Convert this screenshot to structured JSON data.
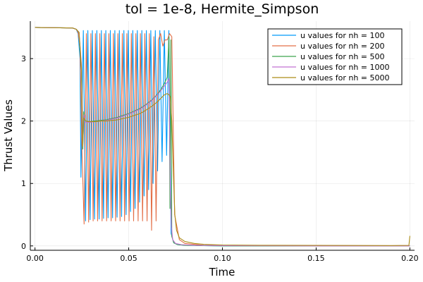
{
  "chart_data": {
    "type": "line",
    "title": "tol = 1e-8, Hermite_Simpson",
    "xlabel": "Time",
    "ylabel": "Thrust Values",
    "xlim": [
      -0.0025,
      0.2025
    ],
    "ylim": [
      -0.07,
      3.6
    ],
    "xticks": [
      0.0,
      0.05,
      0.1,
      0.15,
      0.2
    ],
    "xtick_labels": [
      "0.00",
      "0.05",
      "0.10",
      "0.15",
      "0.20"
    ],
    "yticks": [
      0,
      1,
      2,
      3
    ],
    "ytick_labels": [
      "0",
      "1",
      "2",
      "3"
    ],
    "grid": true,
    "legend_position": "top-right",
    "series": [
      {
        "name": "u values for nh = 100",
        "color": "#009AFA",
        "x": [
          0.0,
          0.02,
          0.022,
          0.023,
          0.024,
          0.0245,
          0.0258,
          0.027,
          0.0282,
          0.0294,
          0.0306,
          0.0318,
          0.033,
          0.0342,
          0.0354,
          0.0366,
          0.0378,
          0.039,
          0.0402,
          0.0414,
          0.0426,
          0.0438,
          0.045,
          0.0462,
          0.0474,
          0.0486,
          0.0498,
          0.051,
          0.0522,
          0.0534,
          0.0546,
          0.0558,
          0.057,
          0.0582,
          0.0594,
          0.0606,
          0.0618,
          0.063,
          0.0642,
          0.0654,
          0.0666,
          0.0678,
          0.069,
          0.0702,
          0.0714,
          0.0726,
          0.074,
          0.076,
          0.08,
          0.09,
          0.1,
          0.12,
          0.15,
          0.18,
          0.2
        ],
        "values": [
          3.5,
          3.49,
          3.47,
          3.4,
          3.0,
          1.1,
          3.45,
          0.4,
          3.45,
          0.42,
          3.45,
          0.43,
          3.45,
          0.43,
          3.45,
          0.44,
          3.45,
          0.45,
          3.45,
          0.45,
          3.45,
          0.46,
          3.45,
          0.47,
          3.45,
          0.5,
          3.45,
          0.55,
          3.45,
          0.6,
          3.45,
          0.7,
          3.45,
          0.8,
          3.45,
          0.9,
          3.45,
          1.0,
          3.45,
          1.2,
          3.45,
          1.35,
          3.45,
          1.45,
          3.45,
          0.2,
          0.05,
          0.02,
          0.01,
          0.005,
          0.0,
          0.0,
          0.0,
          0.0,
          0.0
        ]
      },
      {
        "name": "u values for nh = 200",
        "color": "#E36F47",
        "x": [
          0.0,
          0.02,
          0.022,
          0.023,
          0.024,
          0.025,
          0.0262,
          0.0274,
          0.0286,
          0.0298,
          0.031,
          0.0322,
          0.0334,
          0.0346,
          0.0358,
          0.037,
          0.0382,
          0.0394,
          0.0406,
          0.0418,
          0.043,
          0.0442,
          0.0454,
          0.0466,
          0.0478,
          0.049,
          0.0502,
          0.0514,
          0.0526,
          0.0538,
          0.055,
          0.0562,
          0.0574,
          0.0586,
          0.0598,
          0.061,
          0.0622,
          0.0634,
          0.0646,
          0.0658,
          0.067,
          0.0682,
          0.0694,
          0.0706,
          0.0718,
          0.073,
          0.0745,
          0.077,
          0.08,
          0.09,
          0.1,
          0.15,
          0.2
        ],
        "values": [
          3.5,
          3.49,
          3.47,
          3.42,
          3.2,
          1.6,
          0.35,
          3.4,
          0.38,
          3.4,
          0.4,
          3.4,
          0.4,
          3.4,
          0.4,
          3.4,
          0.4,
          3.4,
          0.4,
          3.4,
          0.4,
          3.4,
          0.4,
          3.4,
          0.4,
          3.4,
          0.4,
          3.4,
          0.4,
          3.4,
          0.4,
          3.4,
          0.4,
          3.4,
          0.4,
          3.4,
          0.25,
          3.35,
          0.4,
          3.3,
          3.4,
          3.2,
          3.3,
          3.3,
          3.4,
          3.35,
          0.5,
          0.1,
          0.04,
          0.01,
          0.005,
          0.0,
          0.0
        ]
      },
      {
        "name": "u values for nh = 500",
        "color": "#3EA44E",
        "x": [
          0.0,
          0.02,
          0.022,
          0.0235,
          0.0248,
          0.0255,
          0.026,
          0.027,
          0.029,
          0.032,
          0.035,
          0.038,
          0.041,
          0.044,
          0.047,
          0.05,
          0.053,
          0.056,
          0.059,
          0.062,
          0.065,
          0.067,
          0.069,
          0.0705,
          0.0715,
          0.072,
          0.0725,
          0.073,
          0.074,
          0.076,
          0.08,
          0.09,
          0.1,
          0.15,
          0.2
        ],
        "values": [
          3.5,
          3.49,
          3.47,
          3.42,
          2.8,
          1.55,
          2.15,
          2.0,
          1.99,
          2.0,
          2.01,
          2.02,
          2.04,
          2.06,
          2.09,
          2.12,
          2.16,
          2.2,
          2.26,
          2.33,
          2.42,
          2.5,
          2.6,
          2.7,
          3.35,
          0.6,
          3.3,
          0.15,
          0.05,
          0.02,
          0.01,
          0.005,
          0.0,
          0.0,
          0.0
        ]
      },
      {
        "name": "u values for nh = 1000",
        "color": "#C271D2",
        "x": [
          0.0,
          0.02,
          0.022,
          0.0235,
          0.0248,
          0.0256,
          0.0262,
          0.027,
          0.029,
          0.032,
          0.035,
          0.038,
          0.041,
          0.044,
          0.047,
          0.05,
          0.053,
          0.056,
          0.059,
          0.062,
          0.065,
          0.067,
          0.069,
          0.0705,
          0.0715,
          0.0722,
          0.0728,
          0.0735,
          0.075,
          0.078,
          0.085,
          0.1,
          0.15,
          0.2
        ],
        "values": [
          3.5,
          3.49,
          3.47,
          3.42,
          2.9,
          1.7,
          2.1,
          1.98,
          1.98,
          1.99,
          2.0,
          2.01,
          2.03,
          2.05,
          2.08,
          2.11,
          2.15,
          2.19,
          2.25,
          2.32,
          2.41,
          2.48,
          2.56,
          2.62,
          2.68,
          0.9,
          0.3,
          0.1,
          0.04,
          0.02,
          0.01,
          0.005,
          0.0,
          0.0
        ]
      },
      {
        "name": "u values for nh = 5000",
        "color": "#AC8D18",
        "x": [
          0.0,
          0.02,
          0.022,
          0.0235,
          0.0248,
          0.0255,
          0.026,
          0.027,
          0.029,
          0.032,
          0.035,
          0.038,
          0.041,
          0.044,
          0.047,
          0.05,
          0.053,
          0.056,
          0.059,
          0.062,
          0.065,
          0.067,
          0.069,
          0.0705,
          0.0715,
          0.0722,
          0.073,
          0.0738,
          0.0746,
          0.0755,
          0.077,
          0.08,
          0.085,
          0.09,
          0.1,
          0.12,
          0.15,
          0.19,
          0.1995,
          0.2
        ],
        "values": [
          3.5,
          3.49,
          3.47,
          3.42,
          2.85,
          1.6,
          2.05,
          2.0,
          1.99,
          1.99,
          2.0,
          2.0,
          2.01,
          2.02,
          2.04,
          2.06,
          2.09,
          2.12,
          2.17,
          2.23,
          2.3,
          2.36,
          2.42,
          2.44,
          2.42,
          2.38,
          2.0,
          1.2,
          0.5,
          0.25,
          0.13,
          0.07,
          0.04,
          0.025,
          0.015,
          0.01,
          0.008,
          0.006,
          0.008,
          0.16
        ]
      }
    ]
  }
}
